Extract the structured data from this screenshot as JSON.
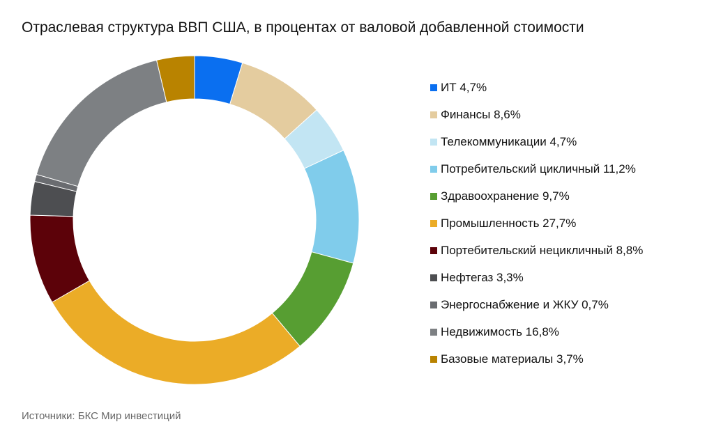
{
  "chart_data": {
    "type": "pie",
    "variant": "donut",
    "title": "Отраслевая структура ВВП США, в процентах от валовой добавленной стоимости",
    "start_angle": "top, clockwise",
    "legend_position": "right",
    "series": [
      {
        "name": "ИТ",
        "value": 4.7,
        "label": "ИТ 4,7%",
        "color": "#0a6ff0"
      },
      {
        "name": "Финансы",
        "value": 8.6,
        "label": "Финансы 8,6%",
        "color": "#e4cc9f"
      },
      {
        "name": "Телекоммуникации",
        "value": 4.7,
        "label": "Телекоммуникации 4,7%",
        "color": "#c2e5f3"
      },
      {
        "name": "Потребительский цикличный",
        "value": 11.2,
        "label": "Потребительский цикличный 11,2%",
        "color": "#80cceb"
      },
      {
        "name": "Здравоохранение",
        "value": 9.7,
        "label": "Здравоохранение 9,7%",
        "color": "#579e32"
      },
      {
        "name": "Промышленность",
        "value": 27.7,
        "label": "Промышленность 27,7%",
        "color": "#ebac27"
      },
      {
        "name": "Портебительский нецикличный",
        "value": 8.8,
        "label": "Портебительский нецикличный 8,8%",
        "color": "#5c0209"
      },
      {
        "name": "Нефтегаз",
        "value": 3.3,
        "label": "Нефтегаз 3,3%",
        "color": "#4d4e51"
      },
      {
        "name": "Энергоснабжение и ЖКУ",
        "value": 0.7,
        "label": "Энергоснабжение и ЖКУ 0,7%",
        "color": "#6a6c70"
      },
      {
        "name": "Недвижимость",
        "value": 16.8,
        "label": "Недвижимость 16,8%",
        "color": "#7d8083"
      },
      {
        "name": "Базовые материалы",
        "value": 3.7,
        "label": "Базовые материалы 3,7%",
        "color": "#b98300"
      }
    ]
  },
  "source": "Источники: БКС Мир инвестиций"
}
